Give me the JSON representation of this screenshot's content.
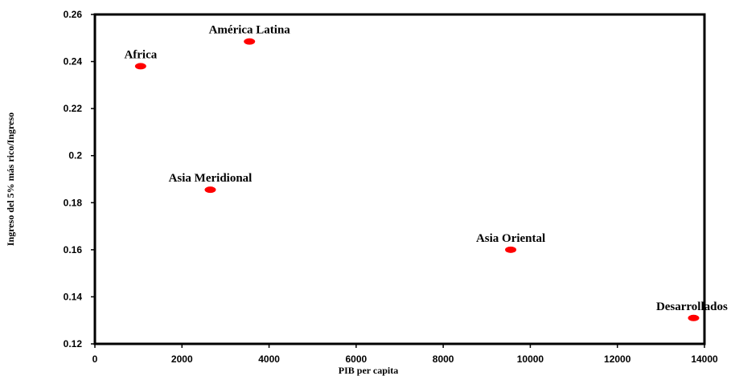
{
  "chart_data": {
    "type": "scatter",
    "title": "",
    "xlabel": "PIB per capita",
    "ylabel": "Ingreso del 5% más rico/Ingreso",
    "xlim": [
      0,
      14000
    ],
    "ylim": [
      0.12,
      0.26
    ],
    "xticks": [
      0,
      2000,
      4000,
      6000,
      8000,
      10000,
      12000,
      14000
    ],
    "yticks": [
      0.12,
      0.14,
      0.16,
      0.18,
      0.2,
      0.22,
      0.24,
      0.26
    ],
    "xtick_labels": [
      "0",
      "2000",
      "4000",
      "6000",
      "8000",
      "10000",
      "12000",
      "14000"
    ],
    "ytick_labels": [
      "0.12",
      "0.14",
      "0.16",
      "0.18",
      "0.2",
      "0.22",
      "0.24",
      "0.26"
    ],
    "grid": false,
    "marker_color": "#ff0000",
    "points": [
      {
        "label": "Africa",
        "x": 1050,
        "y": 0.238
      },
      {
        "label": "América Latina",
        "x": 3550,
        "y": 0.2485
      },
      {
        "label": "Asia Meridional",
        "x": 2650,
        "y": 0.1855
      },
      {
        "label": "Asia Oriental",
        "x": 9550,
        "y": 0.16
      },
      {
        "label": "Desarrollados",
        "x": 13750,
        "y": 0.131
      }
    ]
  }
}
